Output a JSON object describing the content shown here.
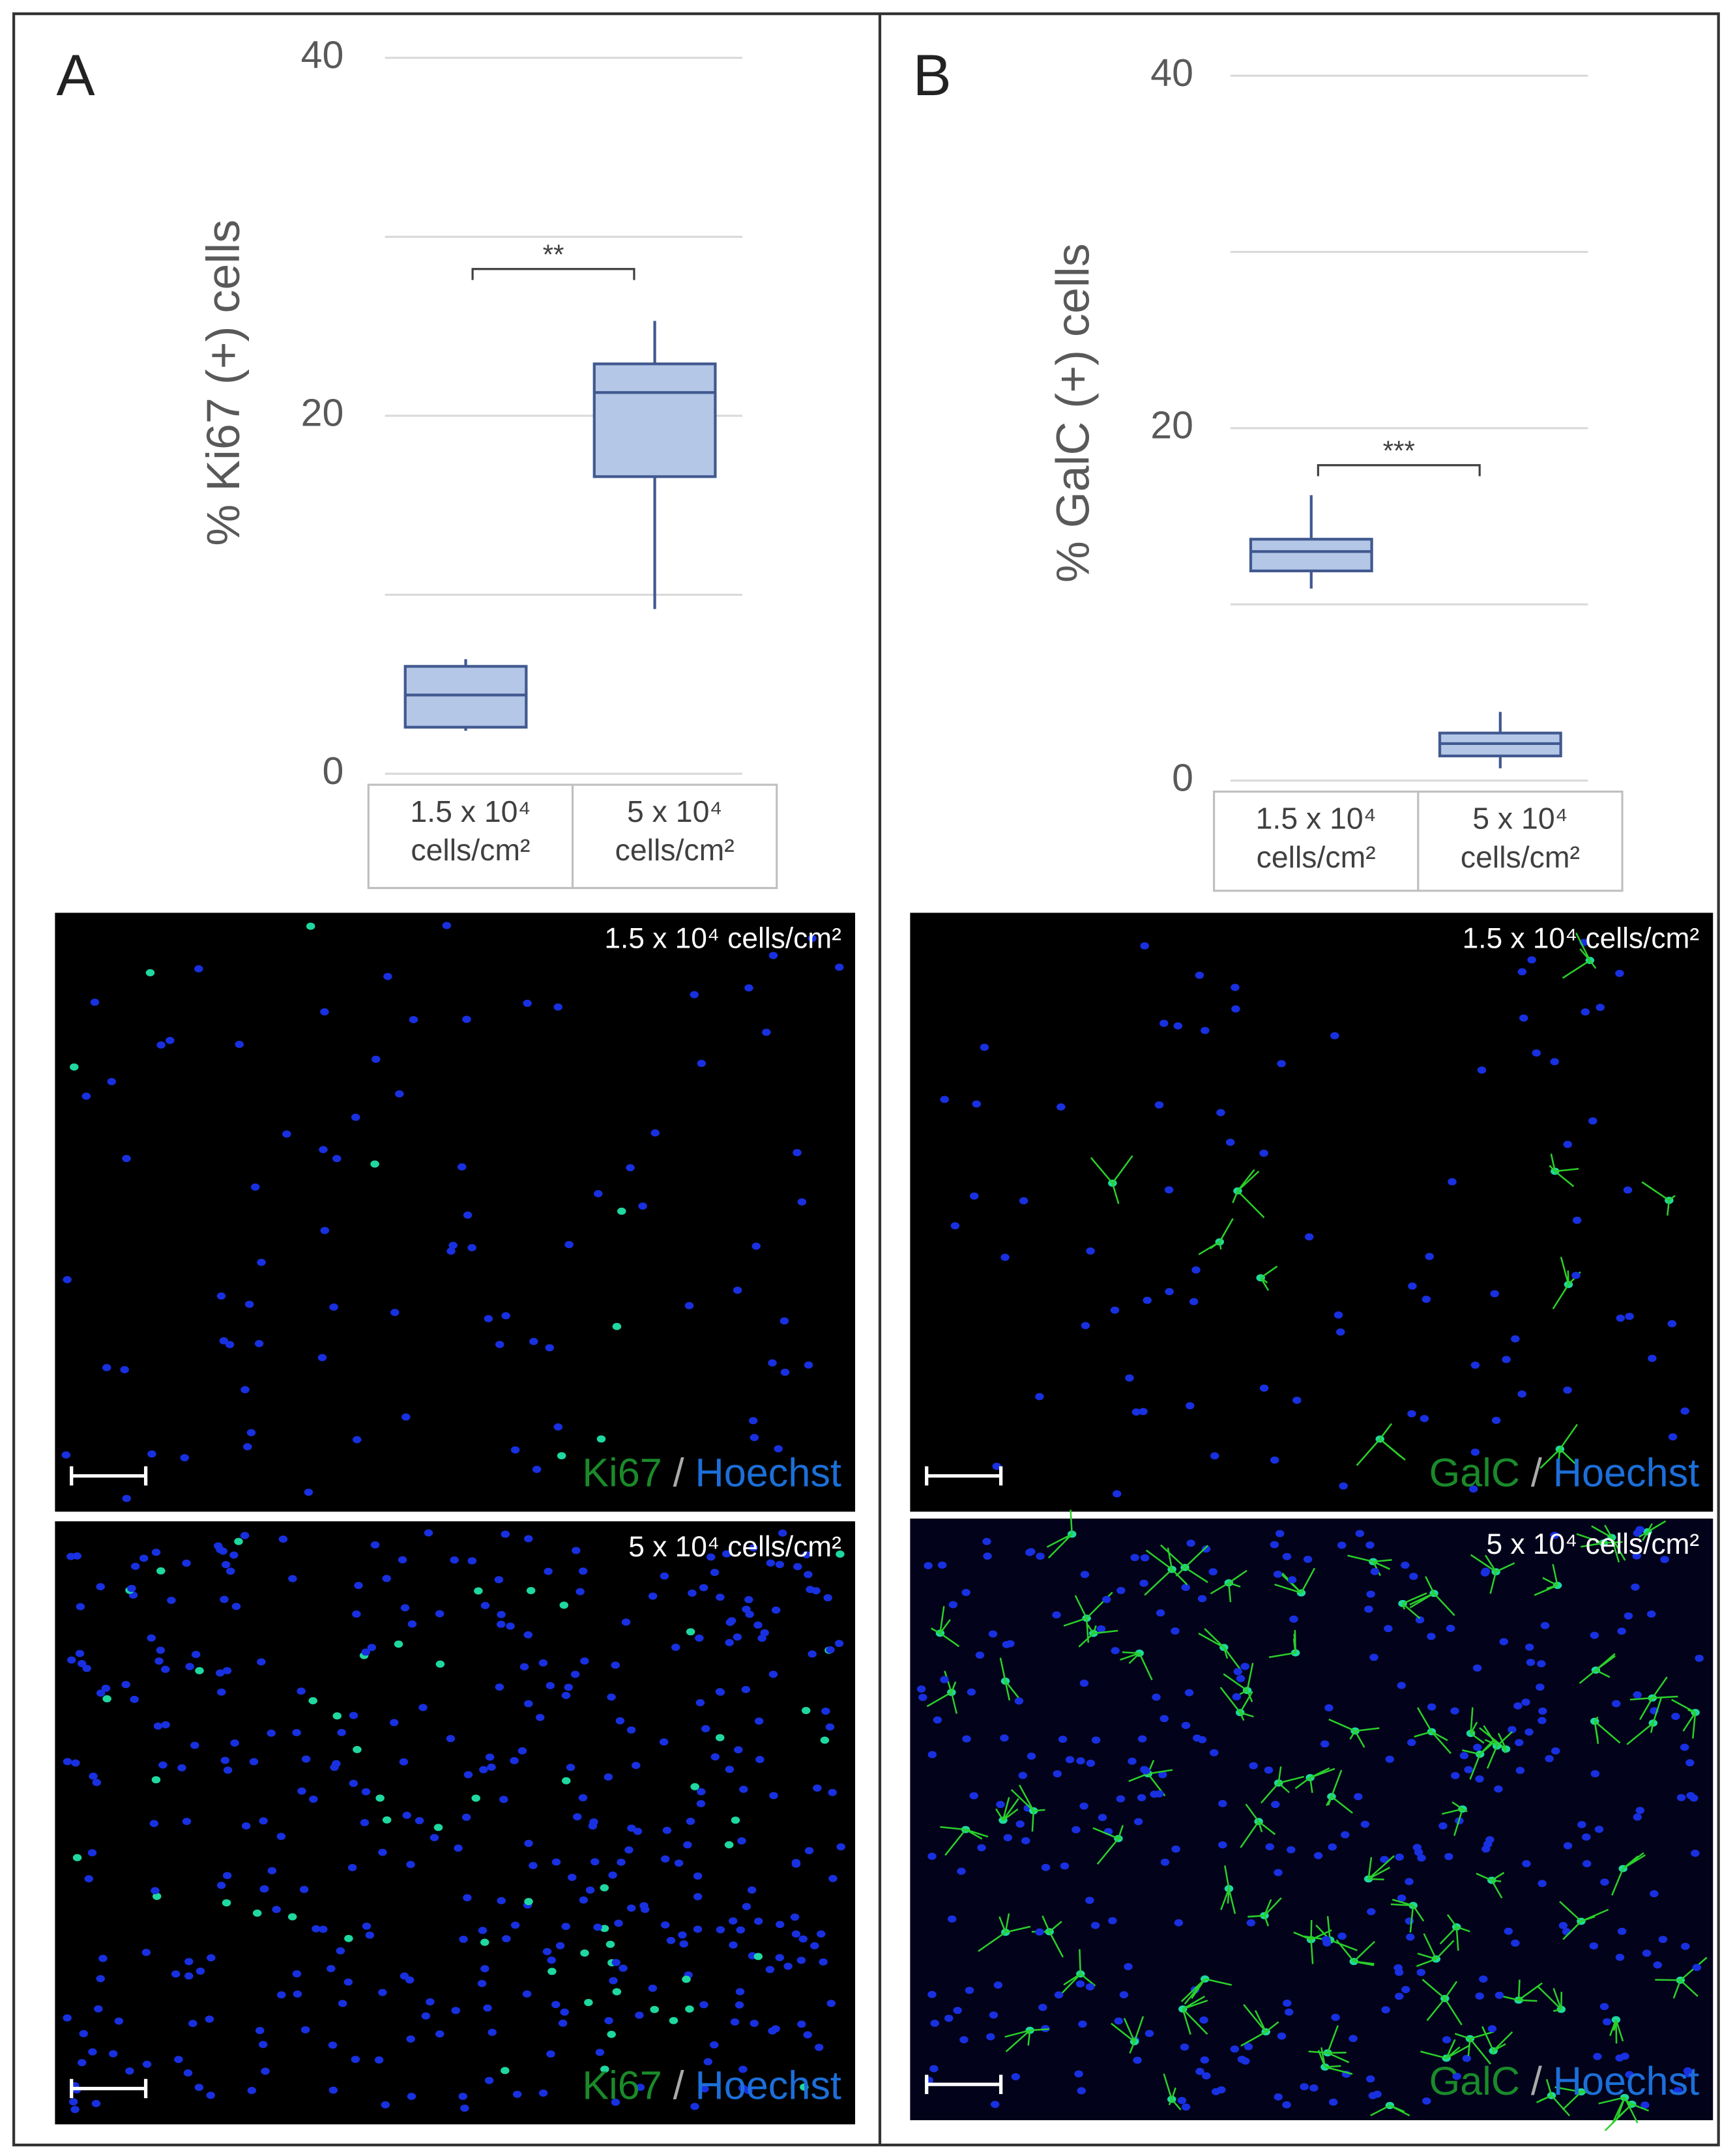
{
  "chart_data": [
    {
      "type": "box",
      "panel_label": "A",
      "ylabel": "% Ki67 (+) cells",
      "categories": [
        "1.5 x 10⁴ cells/cm²",
        "5 x 10⁴ cells/cm²"
      ],
      "boxes": [
        {
          "whisker_low": 2.4,
          "q1": 2.6,
          "median": 4.4,
          "q3": 6.0,
          "whisker_high": 6.4
        },
        {
          "whisker_low": 9.2,
          "q1": 16.6,
          "median": 21.3,
          "q3": 22.9,
          "whisker_high": 25.3
        }
      ],
      "color": "#b4c7e7",
      "edge_color": "#41598f",
      "ylim": [
        0,
        40
      ],
      "yticks": [
        0,
        20,
        40
      ],
      "yminor": [
        10,
        30
      ],
      "grid": true,
      "significance": {
        "label": "**",
        "y": 28.2
      }
    },
    {
      "type": "box",
      "panel_label": "B",
      "ylabel": "% GalC (+) cells",
      "categories": [
        "1.5 x 10⁴ cells/cm²",
        "5 x 10⁴ cells/cm²"
      ],
      "boxes": [
        {
          "whisker_low": 10.9,
          "q1": 11.9,
          "median": 13.0,
          "q3": 13.7,
          "whisker_high": 16.2
        },
        {
          "whisker_low": 0.7,
          "q1": 1.4,
          "median": 2.1,
          "q3": 2.7,
          "whisker_high": 3.9
        }
      ],
      "color": "#b4c7e7",
      "edge_color": "#41598f",
      "ylim": [
        0,
        40
      ],
      "yticks": [
        0,
        20,
        40
      ],
      "yminor": [
        10,
        30
      ],
      "grid": true,
      "significance": {
        "label": "***",
        "y": 17.9
      }
    }
  ],
  "images": [
    {
      "caption": "1.5 x 10⁴ cells/cm²",
      "stain": "Ki67",
      "separator": "/",
      "counterstain": "Hoechst"
    },
    {
      "caption": "5 x 10⁴ cells/cm²",
      "stain": "Ki67",
      "separator": "/",
      "counterstain": "Hoechst"
    },
    {
      "caption": "1.5 x 10⁴ cells/cm²",
      "stain": "GalC",
      "separator": "/",
      "counterstain": "Hoechst"
    },
    {
      "caption": "5 x 10⁴ cells/cm²",
      "stain": "GalC",
      "separator": "/",
      "counterstain": "Hoechst"
    }
  ]
}
